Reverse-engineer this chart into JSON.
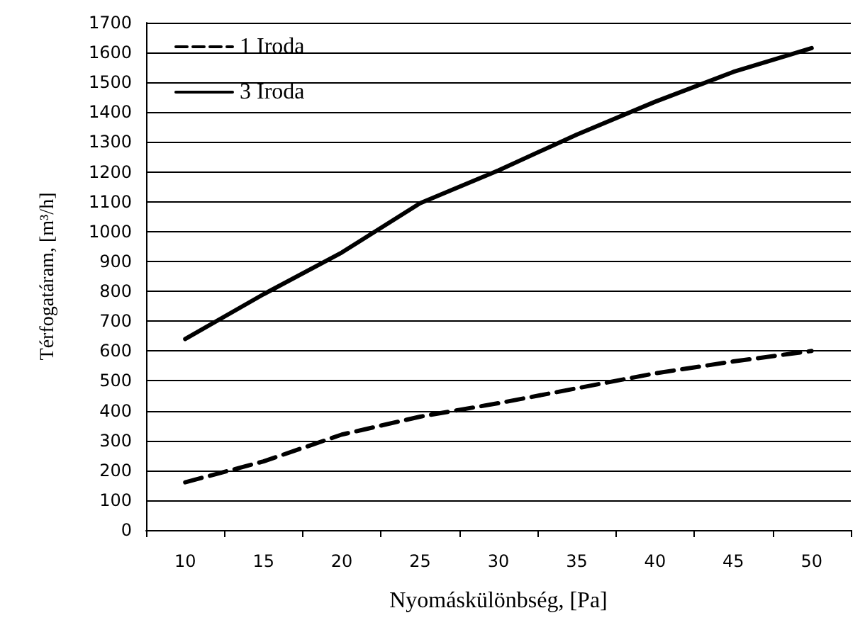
{
  "chart_data": {
    "type": "line",
    "xlabel": "Nyomáskülönbség, [Pa]",
    "ylabel": "Térfogatáram, [m³/h]",
    "categories": [
      "10",
      "15",
      "20",
      "25",
      "30",
      "35",
      "40",
      "45",
      "50"
    ],
    "series": [
      {
        "name": "1 Iroda",
        "color": "#000000",
        "line_style": "dashed",
        "values": [
          160,
          230,
          320,
          380,
          425,
          475,
          525,
          565,
          600
        ]
      },
      {
        "name": "3 Iroda",
        "color": "#000000",
        "line_style": "solid",
        "values": [
          640,
          790,
          930,
          1095,
          1205,
          1325,
          1435,
          1535,
          1615
        ]
      }
    ],
    "ylim": [
      0,
      1700
    ],
    "yticks": [
      0,
      100,
      200,
      300,
      400,
      500,
      600,
      700,
      800,
      900,
      1000,
      1100,
      1200,
      1300,
      1400,
      1500,
      1600,
      1700
    ],
    "grid": "y",
    "legend": "top left",
    "marker": "none"
  }
}
